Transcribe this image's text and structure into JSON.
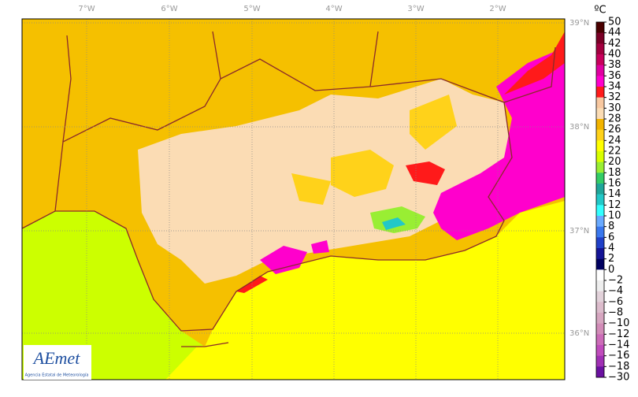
{
  "map": {
    "lon_labels": [
      "7°W",
      "6°W",
      "5°W",
      "4°W",
      "3°W",
      "2°W"
    ],
    "lat_labels": [
      "39°N",
      "38°N",
      "37°N",
      "36°N"
    ],
    "logo": {
      "name": "AEmet",
      "subtitle": "Agencia Estatal de Meteorología"
    }
  },
  "colorbar": {
    "unit": "ºC",
    "ticks": [
      50,
      44,
      42,
      40,
      38,
      36,
      34,
      32,
      30,
      28,
      26,
      24,
      22,
      20,
      18,
      16,
      14,
      12,
      10,
      8,
      6,
      4,
      2,
      0,
      {
        "value": -2,
        "label": "−2"
      },
      {
        "value": -4,
        "label": "−4"
      },
      {
        "value": -6,
        "label": "−6"
      },
      {
        "value": -8,
        "label": "−8"
      },
      {
        "value": -10,
        "label": "−10"
      },
      {
        "value": -12,
        "label": "−12"
      },
      {
        "value": -14,
        "label": "−14"
      },
      {
        "value": -16,
        "label": "−16"
      },
      {
        "value": -18,
        "label": "−18"
      },
      {
        "value": -30,
        "label": "−30"
      }
    ],
    "colors": [
      "#4a0000",
      "#7a0026",
      "#a3003f",
      "#c8005c",
      "#e000a0",
      "#ff00cc",
      "#ff1a1a",
      "#f8c8a0",
      "#fbdcb4",
      "#f2b400",
      "#ffd21a",
      "#ffff00",
      "#d8ff00",
      "#99ee33",
      "#33cc66",
      "#1fa69a",
      "#22c8c8",
      "#33ffff",
      "#6aaaff",
      "#3a78ee",
      "#2040c8",
      "#141496",
      "#000060",
      "#ffffff",
      "#eeeeee",
      "#e2d2da",
      "#dcbccc",
      "#d6a6c0",
      "#d28cb8",
      "#cc6cb8",
      "#c04cbc",
      "#a030b4",
      "#6a10a0"
    ]
  }
}
